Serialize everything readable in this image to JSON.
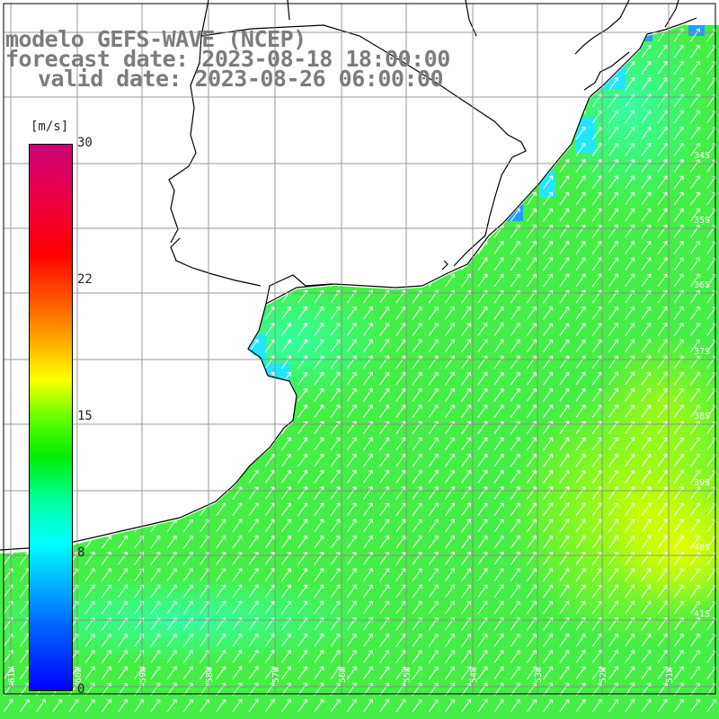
{
  "title": {
    "line1": "modelo GEFS-WAVE (NCEP)",
    "line2": "forecast date: 2023-08-18 18:00:00",
    "line3": "valid date: 2023-08-26 06:00:00"
  },
  "colorbar": {
    "unit_label": "[m/s]",
    "ticks": [
      "30",
      "22",
      "15",
      "8",
      "0"
    ],
    "gradient_stops": [
      "#0000ff",
      "#00ffff",
      "#00ee00",
      "#ffff00",
      "#ff0000",
      "#cc0077"
    ]
  },
  "lat_labels": [
    "34S",
    "35S",
    "36S",
    "37S",
    "38S",
    "39S",
    "40S",
    "41S"
  ],
  "lon_labels": [
    "61W",
    "60W",
    "59W",
    "58W",
    "57W",
    "56W",
    "55W",
    "54W",
    "53W",
    "52W",
    "51W"
  ],
  "wind_field": {
    "arrow_direction": "north-east",
    "speed_range_ms": [
      7,
      16
    ],
    "land_color": "#ffffff",
    "coast_color": "#000000"
  }
}
